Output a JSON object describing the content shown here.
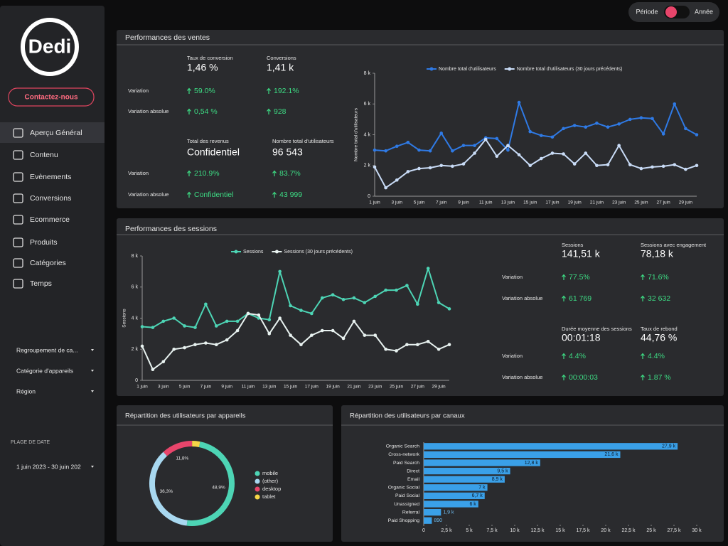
{
  "sidebar": {
    "logo": "Dedi",
    "contact": "Contactez-nous",
    "nav": [
      "Aperçu Général",
      "Contenu",
      "Evènements",
      "Conversions",
      "Ecommerce",
      "Produits",
      "Catégories",
      "Temps"
    ],
    "filters": [
      "Regroupement de ca...",
      "Catégorie d'appareils",
      "Région"
    ],
    "date_range_label": "PLAGE DE DATE",
    "date_range": "1 juin 2023 - 30 juin 202"
  },
  "toggle": {
    "left": "Période",
    "right": "Année"
  },
  "sales": {
    "title": "Performances des ventes",
    "metrics": [
      {
        "columns": [
          {
            "label": "Taux de conversion",
            "value": "1,46 %"
          },
          {
            "label": "Conversions",
            "value": "1,41 k"
          }
        ],
        "rows": [
          {
            "label": "Variation",
            "values": [
              "59.0%",
              "192.1%"
            ]
          },
          {
            "label": "Variation absolue",
            "values": [
              "0,54 %",
              "928"
            ]
          }
        ]
      },
      {
        "columns": [
          {
            "label": "Total des revenus",
            "value": "Confidentiel"
          },
          {
            "label": "Nombre total d'utilisateurs",
            "value": "96 543"
          }
        ],
        "rows": [
          {
            "label": "Variation",
            "values": [
              "210.9%",
              "83.7%"
            ]
          },
          {
            "label": "Variation absolue",
            "values": [
              "Confidentiel",
              "43 999"
            ]
          }
        ]
      }
    ],
    "chart": {
      "type": "line",
      "y_label": "Nombre total d'utilisateurs",
      "categories": [
        "1 juin",
        null,
        "3 juin",
        null,
        "5 juin",
        null,
        "7 juin",
        null,
        "9 juin",
        null,
        "11 juin",
        null,
        "13 juin",
        null,
        "15 juin",
        null,
        "17 juin",
        null,
        "19 juin",
        null,
        "21 juin",
        null,
        "23 juin",
        null,
        "25 juin",
        null,
        "27 juin",
        null,
        "29 juin",
        null
      ],
      "series": [
        {
          "name": "Nombre total d'utilisateurs",
          "color": "#2f7ae5",
          "values": [
            3000,
            2950,
            3250,
            3500,
            3000,
            2950,
            4100,
            2950,
            3300,
            3300,
            3800,
            3750,
            3000,
            6100,
            4200,
            3950,
            3850,
            4400,
            4600,
            4500,
            4750,
            4500,
            4700,
            5000,
            5100,
            5050,
            4050,
            6000,
            4400,
            4000
          ]
        },
        {
          "name": "Nombre total d'utilisateurs (30 jours précédents)",
          "color": "#c9dcf7",
          "values": [
            1900,
            550,
            1050,
            1600,
            1800,
            1850,
            2000,
            1950,
            2100,
            2800,
            3700,
            2600,
            3300,
            2700,
            2000,
            2450,
            2800,
            2750,
            2100,
            2800,
            2000,
            2050,
            3300,
            2050,
            1800,
            1900,
            1950,
            2050,
            1750,
            2000
          ]
        }
      ],
      "ylim": [
        0,
        8000
      ],
      "yticks": [
        0,
        {
          "value": 2000,
          "label": "2 k"
        },
        {
          "value": 4000,
          "label": "4 k"
        },
        {
          "value": 6000,
          "label": "6 k"
        },
        {
          "value": 8000,
          "label": "8 k"
        }
      ]
    }
  },
  "sessions": {
    "title": "Performances des sessions",
    "metrics": [
      {
        "columns": [
          {
            "label": "Sessions",
            "value": "141,51 k"
          },
          {
            "label": "Sessions avec engagement",
            "value": "78,18 k"
          }
        ],
        "rows": [
          {
            "label": "Variation",
            "values": [
              "77.5%",
              "71.6%"
            ]
          },
          {
            "label": "Variation absolue",
            "values": [
              "61 769",
              "32 632"
            ]
          }
        ]
      },
      {
        "columns": [
          {
            "label": "Durée moyenne des sessions",
            "value": "00:01:18"
          },
          {
            "label": "Taux de rebond",
            "value": "44,76 %"
          }
        ],
        "rows": [
          {
            "label": "Variation",
            "values": [
              "4.4%",
              "4.4%"
            ]
          },
          {
            "label": "Variation absolue",
            "values": [
              "00:00:03",
              "1.87 %"
            ]
          }
        ]
      }
    ],
    "chart": {
      "type": "line",
      "y_label": "Sessions",
      "categories": [
        "1 juin",
        null,
        "3 juin",
        null,
        "5 juin",
        null,
        "7 juin",
        null,
        "9 juin",
        null,
        "11 juin",
        null,
        "13 juin",
        null,
        "15 juin",
        null,
        "17 juin",
        null,
        "19 juin",
        null,
        "21 juin",
        null,
        "23 juin",
        null,
        "25 juin",
        null,
        "27 juin",
        null,
        "29 juin",
        null
      ],
      "series": [
        {
          "name": "Sessions",
          "color": "#4dd5b5",
          "values": [
            3450,
            3400,
            3800,
            4000,
            3500,
            3400,
            4900,
            3500,
            3800,
            3800,
            4300,
            4000,
            3900,
            7000,
            4800,
            4500,
            4300,
            5300,
            5500,
            5200,
            5300,
            5000,
            5400,
            5800,
            5800,
            6100,
            4900,
            7200,
            5000,
            4600
          ]
        },
        {
          "name": "Sessions (30 jours précédents)",
          "color": "#e8f2f0",
          "values": [
            2200,
            700,
            1200,
            2000,
            2100,
            2300,
            2400,
            2300,
            2600,
            3200,
            4300,
            4200,
            3000,
            4000,
            2900,
            2300,
            2900,
            3200,
            3200,
            2700,
            3800,
            2900,
            2900,
            2000,
            1900,
            2300,
            2300,
            2500,
            2000,
            2300
          ]
        }
      ],
      "ylim": [
        0,
        8000
      ],
      "yticks": [
        0,
        {
          "value": 2000,
          "label": "2 k"
        },
        {
          "value": 4000,
          "label": "4 k"
        },
        {
          "value": 6000,
          "label": "6 k"
        },
        {
          "value": 8000,
          "label": "8 k"
        }
      ]
    }
  },
  "devices": {
    "title": "Répartition des utilisateurs par appareils",
    "chart": {
      "type": "pie",
      "categories": [
        "mobile",
        "(other)",
        "desktop",
        "tablet"
      ],
      "values": [
        48.9,
        36.3,
        11.8,
        3.0
      ],
      "value_labels": [
        "48,9%",
        "36,3%",
        "11,8%",
        null
      ],
      "colors": [
        "#4dd5b5",
        "#a8d8f0",
        "#e8456b",
        "#f5d547"
      ]
    }
  },
  "channels": {
    "title": "Répartition des utilisateurs par canaux",
    "chart": {
      "type": "bar",
      "orientation": "horizontal",
      "categories": [
        "Organic Search",
        "Cross-network",
        "Paid Search",
        "Direct",
        "Email",
        "Organic Social",
        "Paid Social",
        "Unassigned",
        "Referral",
        "Paid Shopping"
      ],
      "values": [
        27900,
        21600,
        12800,
        9500,
        8900,
        7000,
        6700,
        6000,
        1900,
        890
      ],
      "value_labels": [
        "27,9 k",
        "21,6 k",
        "12,8 k",
        "9,5 k",
        "8,9 k",
        "7 k",
        "6,7 k",
        "6 k",
        "1,9 k",
        "890"
      ],
      "color": "#3aa0e8",
      "xlim": [
        0,
        30000
      ],
      "xticks": [
        0,
        {
          "value": 2500,
          "label": "2,5 k"
        },
        {
          "value": 5000,
          "label": "5 k"
        },
        {
          "value": 7500,
          "label": "7,5 k"
        },
        {
          "value": 10000,
          "label": "10 k"
        },
        {
          "value": 12500,
          "label": "12,5 k"
        },
        {
          "value": 15000,
          "label": "15 k"
        },
        {
          "value": 17500,
          "label": "17,5 k"
        },
        {
          "value": 20000,
          "label": "20 k"
        },
        {
          "value": 22500,
          "label": "22,5 k"
        },
        {
          "value": 25000,
          "label": "25 k"
        },
        {
          "value": 27500,
          "label": "27,5 k"
        },
        {
          "value": 30000,
          "label": "30 k"
        }
      ]
    }
  }
}
